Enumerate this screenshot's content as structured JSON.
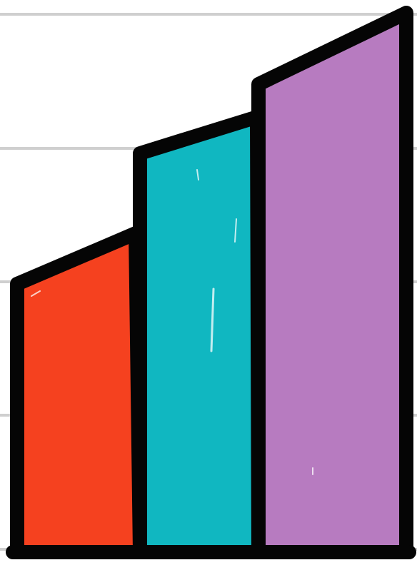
{
  "illustration": {
    "icon": "bar-chart-growth-icon",
    "style": "hand-drawn sketch",
    "background_color": "#ffffff",
    "grid_color": "#cfcfcf",
    "outline_color": "#050505",
    "bars": [
      {
        "name": "bar-left",
        "color": "#f5411f"
      },
      {
        "name": "bar-middle",
        "color": "#10b7c1"
      },
      {
        "name": "bar-right",
        "color": "#b77bc0"
      }
    ]
  }
}
